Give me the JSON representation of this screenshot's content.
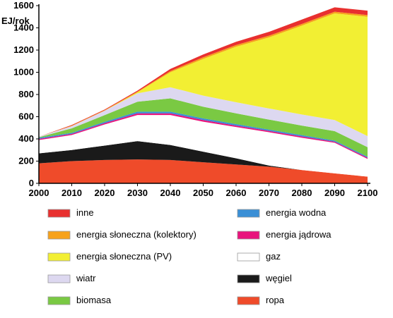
{
  "chart_data": {
    "type": "area",
    "title": "",
    "xlabel": "",
    "ylabel": "EJ/rok",
    "xlim": [
      2000,
      2100
    ],
    "ylim": [
      0,
      1600
    ],
    "xticks": [
      2000,
      2010,
      2020,
      2030,
      2040,
      2050,
      2060,
      2070,
      2080,
      2090,
      2100
    ],
    "yticks": [
      0,
      200,
      400,
      600,
      800,
      1000,
      1200,
      1400,
      1600
    ],
    "grid": false,
    "legend_position": "bottom",
    "x": [
      2000,
      2010,
      2020,
      2030,
      2040,
      2050,
      2060,
      2070,
      2080,
      2090,
      2100
    ],
    "series": [
      {
        "name": "ropa",
        "color": "#ef4b2a",
        "values": [
          180,
          200,
          210,
          215,
          210,
          190,
          170,
          150,
          120,
          90,
          60
        ]
      },
      {
        "name": "węgiel",
        "color": "#1a1a1a",
        "values": [
          90,
          100,
          130,
          165,
          135,
          95,
          55,
          10,
          0,
          0,
          0
        ]
      },
      {
        "name": "gaz",
        "color": "#ffffff",
        "values": [
          120,
          135,
          190,
          235,
          270,
          270,
          282,
          300,
          290,
          275,
          160
        ]
      },
      {
        "name": "energia jądrowa",
        "color": "#e8147c",
        "values": [
          10,
          10,
          12,
          15,
          15,
          15,
          13,
          12,
          12,
          10,
          10
        ]
      },
      {
        "name": "energia wodna",
        "color": "#3a8fd6",
        "values": [
          10,
          10,
          12,
          15,
          15,
          15,
          13,
          12,
          12,
          10,
          10
        ]
      },
      {
        "name": "biomasa",
        "color": "#7ac943",
        "values": [
          5,
          40,
          60,
          90,
          120,
          105,
          97,
          90,
          86,
          85,
          85
        ]
      },
      {
        "name": "wiatr",
        "color": "#ddd8f0",
        "values": [
          5,
          20,
          40,
          75,
          100,
          100,
          100,
          100,
          100,
          100,
          100
        ]
      },
      {
        "name": "energia słoneczna (PV)",
        "color": "#f2ef33",
        "values": [
          0,
          0,
          0,
          10,
          135,
          330,
          500,
          640,
          800,
          960,
          1075
        ]
      },
      {
        "name": "energia słoneczna (kolektory)",
        "color": "#f7a21b",
        "values": [
          0,
          5,
          5,
          5,
          10,
          15,
          15,
          15,
          15,
          15,
          15
        ]
      },
      {
        "name": "inne",
        "color": "#e8302f",
        "values": [
          0,
          5,
          5,
          10,
          20,
          25,
          30,
          35,
          40,
          40,
          40
        ]
      }
    ],
    "legend_columns": [
      [
        "inne",
        "energia słoneczna (kolektory)",
        "energia słoneczna (PV)",
        "wiatr",
        "biomasa"
      ],
      [
        "energia wodna",
        "energia jądrowa",
        "gaz",
        "węgiel",
        "ropa"
      ]
    ]
  }
}
